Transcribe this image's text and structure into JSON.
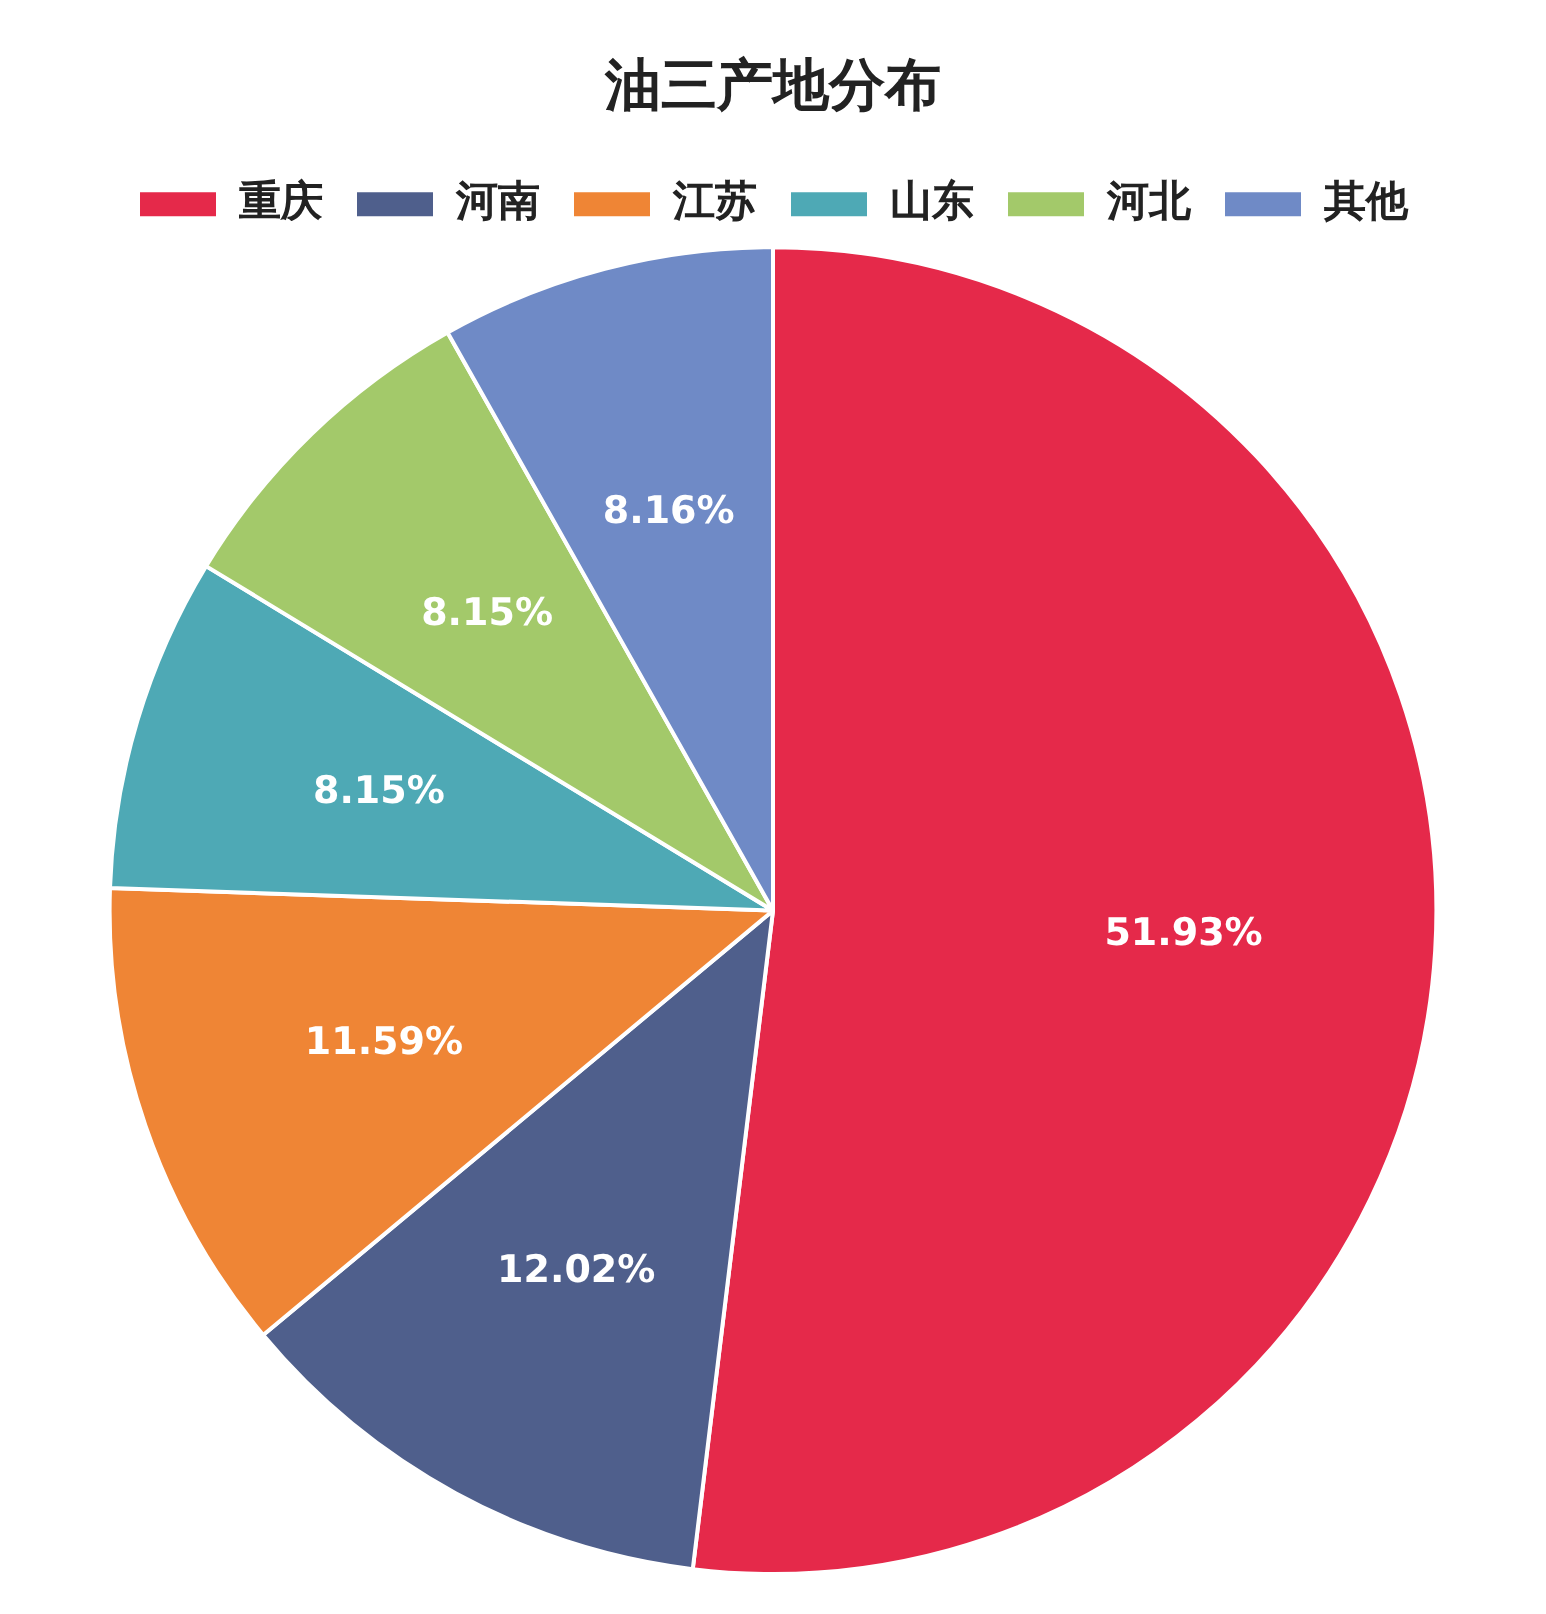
{
  "chart_data": {
    "type": "pie",
    "title": "油三产地分布",
    "categories": [
      "重庆",
      "河南",
      "江苏",
      "山东",
      "河北",
      "其他"
    ],
    "values": [
      51.93,
      12.02,
      11.59,
      8.15,
      8.15,
      8.16
    ],
    "colors": [
      "#e5294a",
      "#4f5f8c",
      "#ef8535",
      "#4ea9b5",
      "#a3c96a",
      "#6f8ac6"
    ],
    "value_labels": [
      "51.93%",
      "12.02%",
      "11.59%",
      "8.15%",
      "8.15%",
      "8.16%"
    ],
    "legend": "top"
  }
}
